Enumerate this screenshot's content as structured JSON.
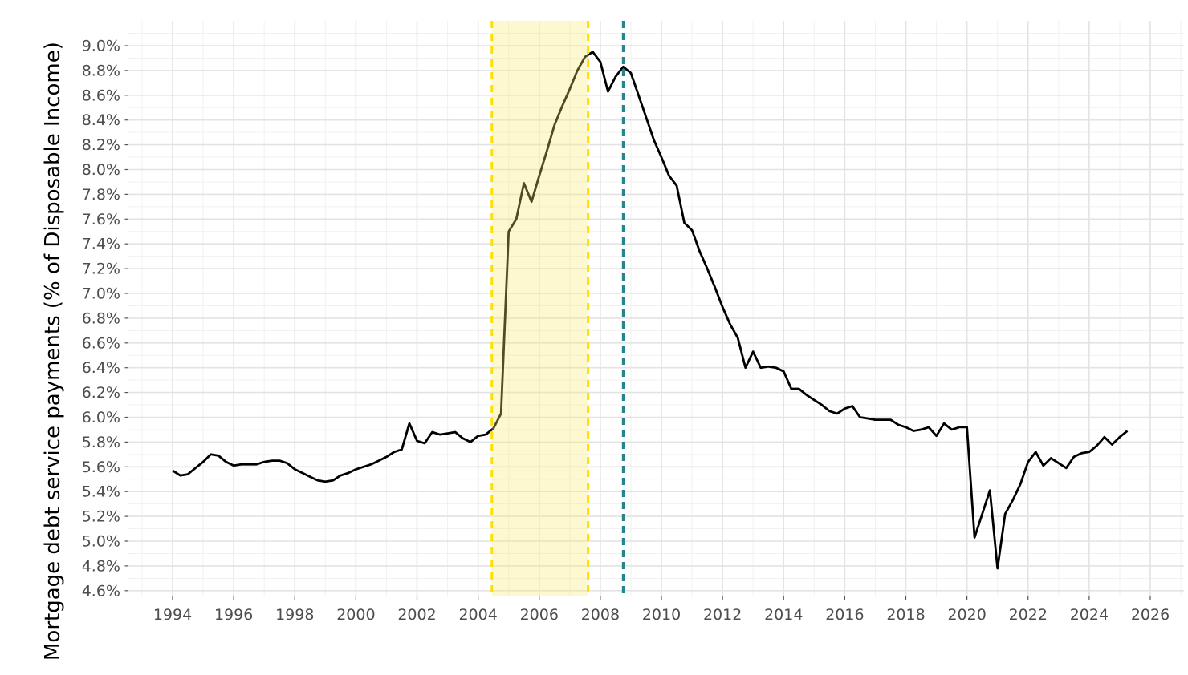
{
  "chart_data": {
    "type": "line",
    "title": "",
    "xlabel": "",
    "ylabel": "Mortgage debt service payments (% of Disposable Income)",
    "grid": "on",
    "legend": "none",
    "xlim": [
      1992.55,
      2027.1
    ],
    "ylim": [
      4.55,
      9.2
    ],
    "x_ticks": [
      1994,
      1996,
      1998,
      2000,
      2002,
      2004,
      2006,
      2008,
      2010,
      2012,
      2014,
      2016,
      2018,
      2020,
      2022,
      2024,
      2026
    ],
    "y_ticks_values": [
      4.6,
      4.8,
      5.0,
      5.2,
      5.4,
      5.6,
      5.8,
      6.0,
      6.2,
      6.4,
      6.6,
      6.8,
      7.0,
      7.2,
      7.4,
      7.6,
      7.8,
      8.0,
      8.2,
      8.4,
      8.6,
      8.8,
      9.0
    ],
    "y_ticks_labels": [
      "4.6%",
      "4.8%",
      "5.0%",
      "5.2%",
      "5.4%",
      "5.6%",
      "5.8%",
      "6.0%",
      "6.2%",
      "6.4%",
      "6.6%",
      "6.8%",
      "7.0%",
      "7.2%",
      "7.4%",
      "7.6%",
      "7.8%",
      "8.0%",
      "8.2%",
      "8.4%",
      "8.6%",
      "8.8%",
      "9.0%"
    ],
    "series": [
      {
        "name": "Mortgage debt service payments (% of Disposable Income)",
        "color": "#000000",
        "frequency": "quarterly",
        "x_start": 1994.0,
        "x_step": 0.25,
        "values": [
          5.57,
          5.53,
          5.54,
          5.59,
          5.64,
          5.7,
          5.69,
          5.64,
          5.61,
          5.62,
          5.62,
          5.62,
          5.64,
          5.65,
          5.65,
          5.63,
          5.58,
          5.55,
          5.52,
          5.49,
          5.48,
          5.49,
          5.53,
          5.55,
          5.58,
          5.6,
          5.62,
          5.65,
          5.68,
          5.72,
          5.74,
          5.95,
          5.81,
          5.79,
          5.88,
          5.86,
          5.87,
          5.88,
          5.83,
          5.8,
          5.85,
          5.86,
          5.91,
          6.03,
          7.5,
          7.6,
          7.89,
          7.74,
          7.95,
          8.15,
          8.36,
          8.51,
          8.65,
          8.8,
          8.91,
          8.95,
          8.87,
          8.63,
          8.75,
          8.83,
          8.78,
          8.6,
          8.42,
          8.24,
          8.1,
          7.95,
          7.87,
          7.57,
          7.51,
          7.34,
          7.2,
          7.05,
          6.89,
          6.75,
          6.64,
          6.4,
          6.53,
          6.4,
          6.41,
          6.4,
          6.37,
          6.23,
          6.23,
          6.18,
          6.14,
          6.1,
          6.05,
          6.03,
          6.07,
          6.09,
          6.0,
          5.99,
          5.98,
          5.98,
          5.98,
          5.94,
          5.92,
          5.89,
          5.9,
          5.92,
          5.85,
          5.95,
          5.9,
          5.92,
          5.92,
          5.03,
          5.22,
          5.41,
          4.78,
          5.22,
          5.33,
          5.46,
          5.64,
          5.72,
          5.61,
          5.67,
          5.63,
          5.59,
          5.68,
          5.71,
          5.72,
          5.77,
          5.84,
          5.78,
          5.84,
          5.89
        ]
      }
    ],
    "annotations": {
      "shaded_band": {
        "x_from": 2004.45,
        "x_to": 2007.6,
        "fill_color": "#f8e96a",
        "fill_opacity": 0.32,
        "border_color": "#ffdf00",
        "border_style": "dashed"
      },
      "event_vline": {
        "x": 2008.75,
        "color": "#25848e",
        "style": "dashed"
      }
    }
  },
  "colors": {
    "background": "#ffffff",
    "grid_major": "#e3e3e3",
    "grid_minor": "#f1f1f1",
    "tick_mark": "#555555",
    "tick_text": "#4d4d4d",
    "axis_title_text": "#000000"
  }
}
